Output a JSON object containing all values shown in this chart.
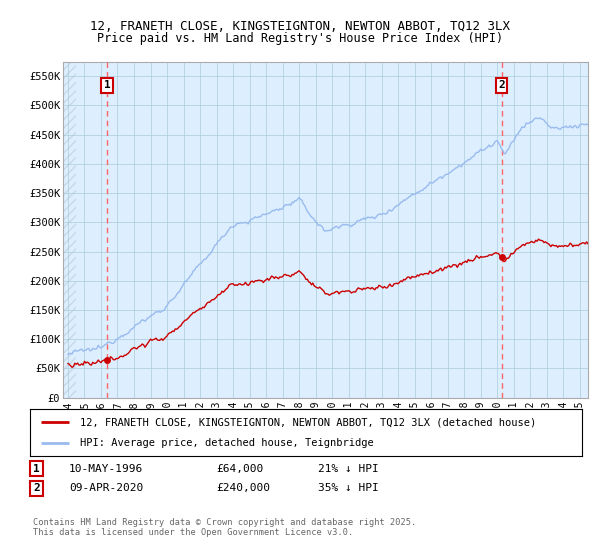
{
  "title1": "12, FRANETH CLOSE, KINGSTEIGNTON, NEWTON ABBOT, TQ12 3LX",
  "title2": "Price paid vs. HM Land Registry's House Price Index (HPI)",
  "ylim": [
    0,
    575000
  ],
  "yticks": [
    0,
    50000,
    100000,
    150000,
    200000,
    250000,
    300000,
    350000,
    400000,
    450000,
    500000,
    550000
  ],
  "ytick_labels": [
    "£0",
    "£50K",
    "£100K",
    "£150K",
    "£200K",
    "£250K",
    "£300K",
    "£350K",
    "£400K",
    "£450K",
    "£500K",
    "£550K"
  ],
  "xlim_start": 1993.7,
  "xlim_end": 2025.5,
  "xtick_years": [
    1994,
    1995,
    1996,
    1997,
    1998,
    1999,
    2000,
    2001,
    2002,
    2003,
    2004,
    2005,
    2006,
    2007,
    2008,
    2009,
    2010,
    2011,
    2012,
    2013,
    2014,
    2015,
    2016,
    2017,
    2018,
    2019,
    2020,
    2021,
    2022,
    2023,
    2024,
    2025
  ],
  "hpi_color": "#99bbee",
  "price_color": "#cc0000",
  "vline_color": "#ff6666",
  "marker1_year": 1996.36,
  "marker1_price": 64000,
  "marker2_year": 2020.27,
  "marker2_price": 240000,
  "legend_label1": "12, FRANETH CLOSE, KINGSTEIGNTON, NEWTON ABBOT, TQ12 3LX (detached house)",
  "legend_label2": "HPI: Average price, detached house, Teignbridge",
  "annotation1_label": "1",
  "annotation2_label": "2",
  "copyright_text": "Contains HM Land Registry data © Crown copyright and database right 2025.\nThis data is licensed under the Open Government Licence v3.0.",
  "bg_color": "#ffffff",
  "plot_bg_color": "#ddeeff",
  "grid_color": "#aaccdd",
  "hatch_color": "#c8d8e8"
}
